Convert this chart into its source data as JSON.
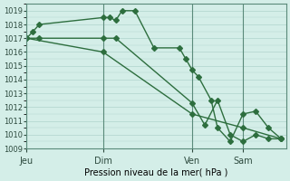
{
  "background_color": "#d4eee8",
  "grid_color": "#b0d4cc",
  "line_color": "#2d6e3e",
  "marker_color": "#2d6e3e",
  "ylabel_ticks": [
    1009,
    1010,
    1011,
    1012,
    1013,
    1014,
    1015,
    1016,
    1017,
    1018,
    1019
  ],
  "ylim": [
    1009,
    1019.5
  ],
  "xlabel": "Pression niveau de la mer( hPa )",
  "xtick_labels": [
    "Jeu",
    "Dim",
    "Ven",
    "Sam"
  ],
  "xtick_positions": [
    0,
    3.0,
    6.5,
    8.5
  ],
  "vline_positions": [
    0,
    3.0,
    6.5,
    8.5
  ],
  "series1": [
    0,
    0.25,
    0.5,
    3.0,
    3.25,
    3.5,
    3.75,
    4.25,
    5.0,
    6.0,
    6.25,
    6.5,
    6.75,
    7.25,
    7.5,
    8.0,
    8.5,
    9.0,
    9.5,
    10.0
  ],
  "values1": [
    1017.0,
    1017.5,
    1018.0,
    1018.5,
    1018.5,
    1018.3,
    1019.0,
    1019.0,
    1016.3,
    1016.3,
    1015.5,
    1014.7,
    1014.2,
    1012.5,
    1010.5,
    1009.5,
    1011.5,
    1011.7,
    1010.5,
    1009.7
  ],
  "series2": [
    0,
    0.5,
    3.0,
    3.5,
    6.5,
    7.0,
    7.5,
    8.0,
    8.5,
    9.0,
    9.5,
    10.0
  ],
  "values2": [
    1017.0,
    1017.0,
    1017.0,
    1017.0,
    1012.3,
    1010.7,
    1012.5,
    1010.0,
    1009.5,
    1010.0,
    1009.7,
    1009.7
  ],
  "series3": [
    0,
    3.0,
    6.5,
    8.5,
    10.0
  ],
  "values3": [
    1017.0,
    1016.0,
    1011.5,
    1010.5,
    1009.7
  ],
  "xlim": [
    0,
    10.2
  ],
  "figsize": [
    3.2,
    2.0
  ],
  "dpi": 100
}
